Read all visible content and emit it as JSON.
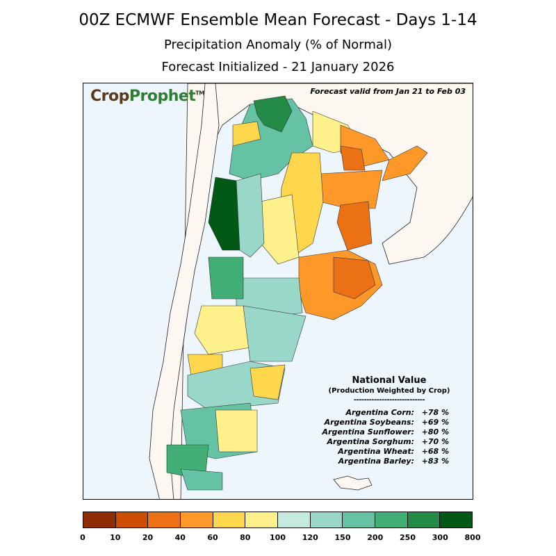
{
  "header": {
    "title": "00Z ECMWF Ensemble Mean Forecast  -  Days 1-14",
    "subtitle": "Precipitation Anomaly (% of Normal)",
    "initialized": "Forecast Initialized - 21 January 2026"
  },
  "map": {
    "logo_crop": "Crop",
    "logo_prophet": "Prophet",
    "logo_tm": "TM",
    "valid_text": "Forecast valid from Jan 21 to Feb 03"
  },
  "national": {
    "title": "National Value",
    "subtitle": "(Production Weighted by Crop)",
    "divider": "----------------------------",
    "items": [
      {
        "name": "Argentina Corn:",
        "value": "+78 %"
      },
      {
        "name": "Argentina Soybeans:",
        "value": "+69 %"
      },
      {
        "name": "Argentina Sunflower:",
        "value": "+80 %"
      },
      {
        "name": "Argentina Sorghum:",
        "value": "+70 %"
      },
      {
        "name": "Argentina Wheat:",
        "value": "+68 %"
      },
      {
        "name": "Argentina Barley:",
        "value": "+83 %"
      }
    ]
  },
  "colorbar": {
    "ticks": [
      "0",
      "10",
      "20",
      "40",
      "60",
      "80",
      "100",
      "120",
      "150",
      "200",
      "250",
      "300",
      "800"
    ],
    "colors": [
      "#8c2d04",
      "#cc4c02",
      "#ec7014",
      "#fe9929",
      "#fed74c",
      "#fef08a",
      "#c7eae0",
      "#99d8c9",
      "#66c2a4",
      "#41ae76",
      "#238b45",
      "#005a16"
    ]
  },
  "palette": {
    "ocean": "#eef6fd",
    "land_neighbor": "#fdf7f2",
    "border": "#000000"
  }
}
